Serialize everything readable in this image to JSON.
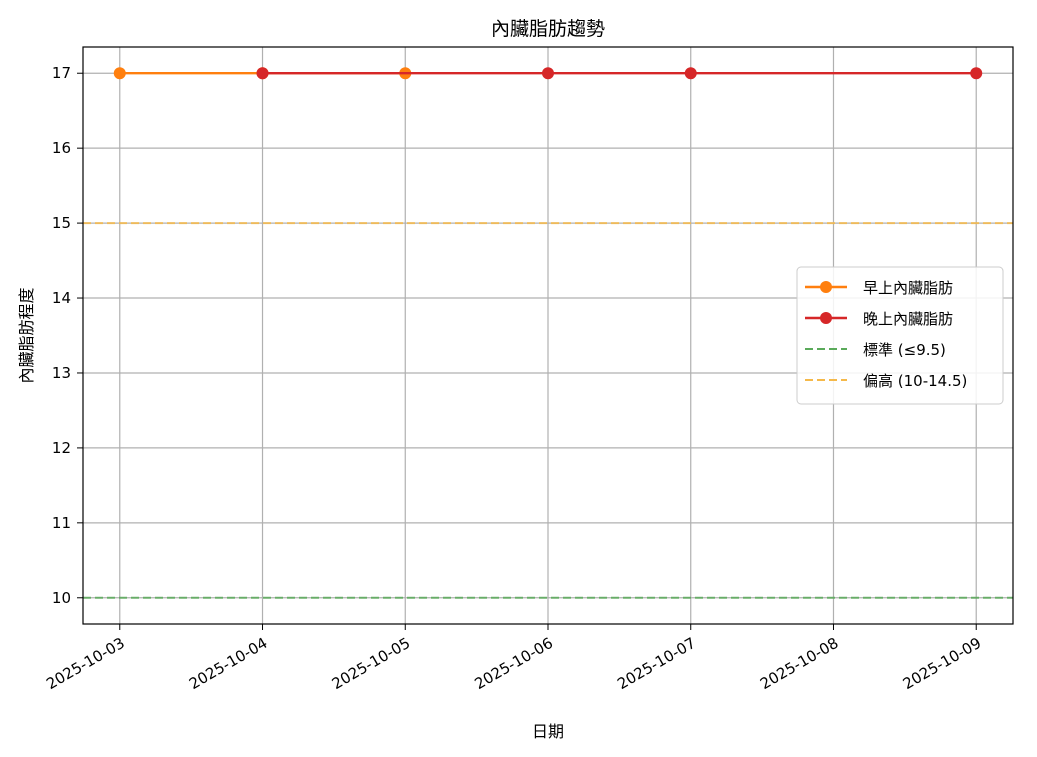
{
  "chart_data": {
    "type": "line",
    "title": "內臟脂肪趨勢",
    "xlabel": "日期",
    "ylabel": "內臟脂肪程度",
    "x_ticks": [
      "2025-10-03",
      "2025-10-04",
      "2025-10-05",
      "2025-10-06",
      "2025-10-07",
      "2025-10-08",
      "2025-10-09"
    ],
    "x_range": [
      "2025-10-02T17:49",
      "2025-10-09T06:11"
    ],
    "ylim": [
      9.65,
      17.35
    ],
    "y_ticks": [
      10,
      11,
      12,
      13,
      14,
      15,
      16,
      17
    ],
    "grid": true,
    "legend_position": "center-right",
    "series": [
      {
        "name": "早上內臟脂肪",
        "color": "#ff7f0e",
        "marker": "circle",
        "points": [
          {
            "x": "2025-10-03",
            "y": 17
          },
          {
            "x": "2025-10-04",
            "y": 17
          },
          {
            "x": "2025-10-05",
            "y": 17
          }
        ]
      },
      {
        "name": "晚上內臟脂肪",
        "color": "#d62728",
        "marker": "circle",
        "points": [
          {
            "x": "2025-10-04",
            "y": 17
          },
          {
            "x": "2025-10-06",
            "y": 17
          },
          {
            "x": "2025-10-07",
            "y": 17
          },
          {
            "x": "2025-10-09",
            "y": 17
          }
        ]
      }
    ],
    "reference_lines": [
      {
        "name": "標準 (≤9.5)",
        "y": 10,
        "color": "#5aaa5a",
        "style": "dashed"
      },
      {
        "name": "偏高 (10-14.5)",
        "y": 15,
        "color": "#f5b94a",
        "style": "dashed"
      }
    ]
  }
}
